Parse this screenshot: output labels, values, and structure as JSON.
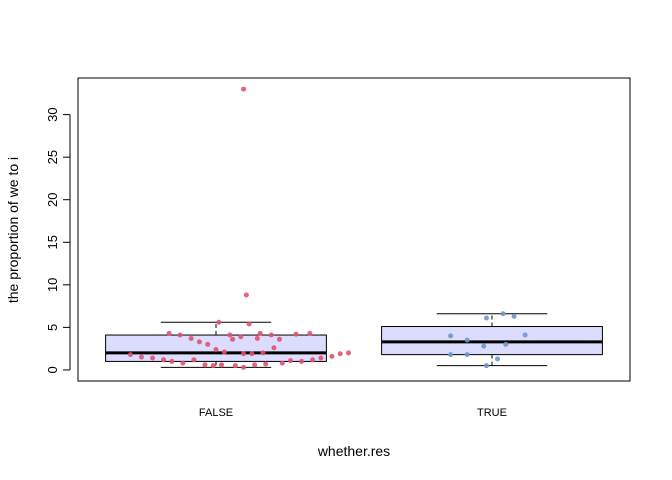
{
  "chart_data": {
    "type": "boxplot",
    "xlabel": "whether.res",
    "ylabel": "the proportion of we to i",
    "y_ticks": [
      0,
      5,
      10,
      15,
      20,
      25,
      30
    ],
    "ylim": [
      -1.3,
      34.3
    ],
    "categories": [
      "FALSE",
      "TRUE"
    ],
    "box_fill": "#dcdcff",
    "boxes": [
      {
        "category": "FALSE",
        "whisker_low": 0.3,
        "q1": 1.0,
        "median": 2.0,
        "q3": 4.1,
        "whisker_high": 5.6
      },
      {
        "category": "TRUE",
        "whisker_low": 0.5,
        "q1": 1.8,
        "median": 3.3,
        "q3": 5.1,
        "whisker_high": 6.6
      }
    ],
    "series": [
      {
        "category": "FALSE",
        "color": "#df536b",
        "points": [
          [
            -0.31,
            1.8
          ],
          [
            -0.27,
            1.5
          ],
          [
            -0.23,
            1.4
          ],
          [
            -0.19,
            1.2
          ],
          [
            -0.17,
            4.3
          ],
          [
            -0.16,
            1.0
          ],
          [
            -0.13,
            4.1
          ],
          [
            -0.12,
            0.8
          ],
          [
            -0.09,
            3.7
          ],
          [
            -0.08,
            1.2
          ],
          [
            -0.06,
            3.3
          ],
          [
            -0.04,
            0.6
          ],
          [
            -0.03,
            3.0
          ],
          [
            -0.01,
            0.5
          ],
          [
            0.0,
            2.4
          ],
          [
            0.01,
            5.6
          ],
          [
            0.02,
            0.6
          ],
          [
            0.03,
            2.1
          ],
          [
            0.05,
            4.1
          ],
          [
            0.06,
            3.6
          ],
          [
            0.07,
            0.5
          ],
          [
            0.09,
            3.9
          ],
          [
            0.1,
            1.9
          ],
          [
            0.1,
            0.3
          ],
          [
            0.1,
            33.0
          ],
          [
            0.11,
            8.8
          ],
          [
            0.12,
            5.4
          ],
          [
            0.13,
            1.9
          ],
          [
            0.14,
            0.6
          ],
          [
            0.15,
            3.7
          ],
          [
            0.16,
            4.3
          ],
          [
            0.17,
            2.0
          ],
          [
            0.18,
            0.7
          ],
          [
            0.2,
            4.1
          ],
          [
            0.21,
            2.6
          ],
          [
            0.23,
            3.6
          ],
          [
            0.24,
            0.8
          ],
          [
            0.27,
            1.1
          ],
          [
            0.29,
            4.2
          ],
          [
            0.31,
            1.0
          ],
          [
            0.34,
            4.3
          ],
          [
            0.35,
            1.2
          ],
          [
            0.38,
            1.4
          ],
          [
            0.42,
            1.6
          ],
          [
            0.45,
            1.9
          ],
          [
            0.48,
            2.0
          ]
        ]
      },
      {
        "category": "TRUE",
        "color": "#6f96c8",
        "points": [
          [
            -0.15,
            4.0
          ],
          [
            -0.15,
            1.8
          ],
          [
            -0.09,
            3.5
          ],
          [
            -0.09,
            1.8
          ],
          [
            -0.03,
            2.8
          ],
          [
            -0.02,
            6.1
          ],
          [
            -0.02,
            0.5
          ],
          [
            0.02,
            1.3
          ],
          [
            0.04,
            6.6
          ],
          [
            0.05,
            3.0
          ],
          [
            0.08,
            6.3
          ],
          [
            0.12,
            4.1
          ]
        ]
      }
    ]
  }
}
